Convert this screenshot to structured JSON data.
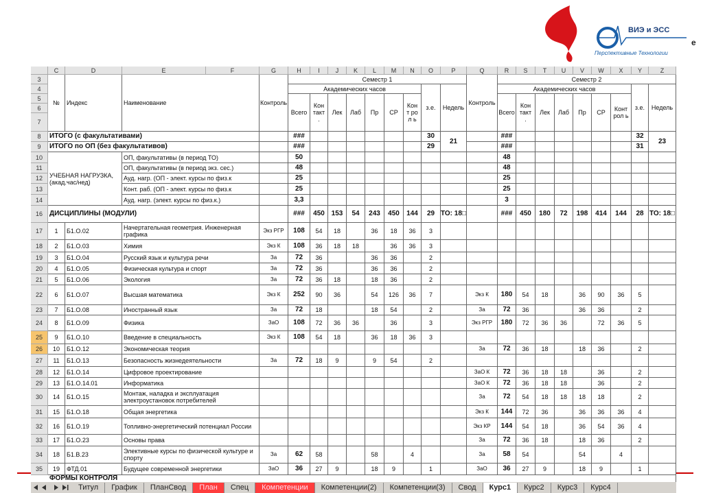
{
  "logo": {
    "brand": "ВИЭ и ЭСС",
    "tagline": "Перспективные Технологии",
    "cut": "е"
  },
  "column_letters": [
    "C",
    "D",
    "E",
    "F",
    "G",
    "H",
    "I",
    "J",
    "K",
    "L",
    "M",
    "N",
    "O",
    "P",
    "Q",
    "R",
    "S",
    "T",
    "U",
    "V",
    "W",
    "X",
    "Y",
    "Z"
  ],
  "header": {
    "row_numbers": [
      3,
      4,
      5,
      6,
      7
    ],
    "semesters": [
      "Семестр 1",
      "Семестр 2"
    ],
    "hours_label": [
      "Академических часов",
      "Академических часов"
    ],
    "columns": [
      "№",
      "Индекс",
      "Наименование",
      "Контроль",
      "Всего",
      "Кон такт .",
      "Лек",
      "Лаб",
      "Пр",
      "СР",
      "Конт рол ь",
      "з.е.",
      "Недель",
      "Контроль",
      "Всего",
      "Кон такт .",
      "Лек",
      "Лаб",
      "Пр",
      "СР",
      "Конт рол ь",
      "з.е.",
      "Недель"
    ]
  },
  "table": {
    "rows": [
      {
        "n": 8,
        "cells": [
          "ИТОГО (с факультативами)",
          null,
          null,
          null,
          "###",
          null,
          null,
          null,
          null,
          null,
          null,
          "30",
          "21",
          null,
          "###",
          null,
          null,
          null,
          null,
          null,
          null,
          "32",
          "23"
        ]
      },
      {
        "n": 9,
        "cells": [
          "ИТОГО по ОП (без факультативов)",
          null,
          null,
          null,
          "###",
          null,
          null,
          null,
          null,
          null,
          null,
          "29",
          null,
          null,
          "###",
          null,
          null,
          null,
          null,
          null,
          null,
          "31",
          null
        ]
      },
      {
        "n": 10,
        "cells": [
          "УЧЕБНАЯ НАГРУЗКА, (акад.час/нед)",
          null,
          "ОП, факультативы (в период ТО)",
          null,
          "50",
          null,
          null,
          null,
          null,
          null,
          null,
          null,
          null,
          null,
          "48",
          null,
          null,
          null,
          null,
          null,
          null,
          null,
          null
        ]
      },
      {
        "n": 11,
        "cells": [
          null,
          null,
          "ОП, факультативы (в период экз. сес.)",
          null,
          "48",
          null,
          null,
          null,
          null,
          null,
          null,
          null,
          null,
          null,
          "48",
          null,
          null,
          null,
          null,
          null,
          null,
          null,
          null
        ]
      },
      {
        "n": 12,
        "cells": [
          null,
          null,
          "Ауд. нагр. (ОП - элект. курсы по физ.к",
          null,
          "25",
          null,
          null,
          null,
          null,
          null,
          null,
          null,
          null,
          null,
          "25",
          null,
          null,
          null,
          null,
          null,
          null,
          null,
          null
        ]
      },
      {
        "n": 13,
        "cells": [
          null,
          null,
          "Конт. раб. (ОП - элект. курсы по физ.к",
          null,
          "25",
          null,
          null,
          null,
          null,
          null,
          null,
          null,
          null,
          null,
          "25",
          null,
          null,
          null,
          null,
          null,
          null,
          null,
          null
        ]
      },
      {
        "n": 14,
        "cells": [
          null,
          null,
          "Ауд. нагр. (элект. курсы по физ.к.)",
          null,
          "3,3",
          null,
          null,
          null,
          null,
          null,
          null,
          null,
          null,
          null,
          "3",
          null,
          null,
          null,
          null,
          null,
          null,
          null,
          null
        ]
      },
      {
        "n": 16,
        "cells": [
          "ДИСЦИПЛИНЫ (МОДУЛИ)",
          null,
          null,
          null,
          "###",
          "450",
          "153",
          "54",
          "243",
          "450",
          "144",
          "29",
          "ТО: 18□",
          null,
          "###",
          "450",
          "180",
          "72",
          "198",
          "414",
          "144",
          "28",
          "ТО: 18□"
        ]
      },
      {
        "n": 17,
        "cells": [
          "1",
          "Б1.О.02",
          "Начертательная геометрия. Инженерная графика",
          "Экз РГР",
          "108",
          "54",
          "18",
          null,
          "36",
          "18",
          "36",
          "3",
          null,
          null,
          null,
          null,
          null,
          null,
          null,
          null,
          null,
          null,
          null
        ]
      },
      {
        "n": 18,
        "cells": [
          "2",
          "Б1.О.03",
          "Химия",
          "Экз К",
          "108",
          "36",
          "18",
          "18",
          null,
          "36",
          "36",
          "3",
          null,
          null,
          null,
          null,
          null,
          null,
          null,
          null,
          null,
          null,
          null
        ]
      },
      {
        "n": 19,
        "cells": [
          "3",
          "Б1.О.04",
          "Русский язык и культура речи",
          "За",
          "72",
          "36",
          null,
          null,
          "36",
          "36",
          null,
          "2",
          null,
          null,
          null,
          null,
          null,
          null,
          null,
          null,
          null,
          null,
          null
        ]
      },
      {
        "n": 20,
        "cells": [
          "4",
          "Б1.О.05",
          "Физическая культура и спорт",
          "За",
          "72",
          "36",
          null,
          null,
          "36",
          "36",
          null,
          "2",
          null,
          null,
          null,
          null,
          null,
          null,
          null,
          null,
          null,
          null,
          null
        ]
      },
      {
        "n": 21,
        "cells": [
          "5",
          "Б1.О.06",
          "Экология",
          "За",
          "72",
          "36",
          "18",
          null,
          "18",
          "36",
          null,
          "2",
          null,
          null,
          null,
          null,
          null,
          null,
          null,
          null,
          null,
          null,
          null
        ]
      },
      {
        "n": 22,
        "cells": [
          "6",
          "Б1.О.07",
          "Высшая математика",
          "Экз К",
          "252",
          "90",
          "36",
          null,
          "54",
          "126",
          "36",
          "7",
          null,
          "Экз К",
          "180",
          "54",
          "18",
          null,
          "36",
          "90",
          "36",
          "5",
          null
        ]
      },
      {
        "n": 23,
        "cells": [
          "7",
          "Б1.О.08",
          "Иностранный язык",
          "За",
          "72",
          "18",
          null,
          null,
          "18",
          "54",
          null,
          "2",
          null,
          "За",
          "72",
          "36",
          null,
          null,
          "36",
          "36",
          null,
          "2",
          null
        ]
      },
      {
        "n": 24,
        "cells": [
          "8",
          "Б1.О.09",
          "Физика",
          "ЗаО",
          "108",
          "72",
          "36",
          "36",
          null,
          "36",
          null,
          "3",
          null,
          "Экз РГР",
          "180",
          "72",
          "36",
          "36",
          null,
          "72",
          "36",
          "5",
          null
        ]
      },
      {
        "n": 25,
        "cells": [
          "9",
          "Б1.О.10",
          "Введение в специальность",
          "Экз К",
          "108",
          "54",
          "18",
          null,
          "36",
          "18",
          "36",
          "3",
          null,
          null,
          null,
          null,
          null,
          null,
          null,
          null,
          null,
          null,
          null
        ]
      },
      {
        "n": 26,
        "cells": [
          "10",
          "Б1.О.12",
          "Экономическая теория",
          null,
          null,
          null,
          null,
          null,
          null,
          null,
          null,
          null,
          null,
          "За",
          "72",
          "36",
          "18",
          null,
          "18",
          "36",
          null,
          "2",
          null
        ]
      },
      {
        "n": 27,
        "cells": [
          "11",
          "Б1.О.13",
          "Безопасность жизнедеятельности",
          "За",
          "72",
          "18",
          "9",
          null,
          "9",
          "54",
          null,
          "2",
          null,
          null,
          null,
          null,
          null,
          null,
          null,
          null,
          null,
          null,
          null
        ]
      },
      {
        "n": 28,
        "cells": [
          "12",
          "Б1.О.14",
          "Цифровое проектирование",
          null,
          null,
          null,
          null,
          null,
          null,
          null,
          null,
          null,
          null,
          "ЗаО К",
          "72",
          "36",
          "18",
          "18",
          null,
          "36",
          null,
          "2",
          null
        ]
      },
      {
        "n": 29,
        "cells": [
          "13",
          "Б1.О.14.01",
          "Информатика",
          null,
          null,
          null,
          null,
          null,
          null,
          null,
          null,
          null,
          null,
          "ЗаО К",
          "72",
          "36",
          "18",
          "18",
          null,
          "36",
          null,
          "2",
          null
        ]
      },
      {
        "n": 30,
        "cells": [
          "14",
          "Б1.О.15",
          "Монтаж, наладка и эксплуатация электроустановок потребителей",
          null,
          null,
          null,
          null,
          null,
          null,
          null,
          null,
          null,
          null,
          "За",
          "72",
          "54",
          "18",
          "18",
          "18",
          "18",
          null,
          "2",
          null
        ]
      },
      {
        "n": 31,
        "cells": [
          "15",
          "Б1.О.18",
          "Общая энергетика",
          null,
          null,
          null,
          null,
          null,
          null,
          null,
          null,
          null,
          null,
          "Экз К",
          "144",
          "72",
          "36",
          null,
          "36",
          "36",
          "36",
          "4",
          null
        ]
      },
      {
        "n": 32,
        "cells": [
          "16",
          "Б1.О.19",
          "Топливно-энергетический потенциал России",
          null,
          null,
          null,
          null,
          null,
          null,
          null,
          null,
          null,
          null,
          "Экз КР",
          "144",
          "54",
          "18",
          null,
          "36",
          "54",
          "36",
          "4",
          null
        ]
      },
      {
        "n": 33,
        "cells": [
          "17",
          "Б1.О.23",
          "Основы права",
          null,
          null,
          null,
          null,
          null,
          null,
          null,
          null,
          null,
          null,
          "За",
          "72",
          "36",
          "18",
          null,
          "18",
          "36",
          null,
          "2",
          null
        ]
      },
      {
        "n": 34,
        "cells": [
          "18",
          "Б1.В.23",
          "Элективные курсы по физической культуре и спорту",
          "За",
          "62",
          "58",
          null,
          null,
          "58",
          null,
          "4",
          null,
          null,
          "За",
          "58",
          "54",
          null,
          null,
          "54",
          null,
          "4",
          null,
          null
        ]
      },
      {
        "n": 35,
        "cells": [
          "19",
          "ФТД.01",
          "Будущее современной энергетики",
          "ЗаО",
          "36",
          "27",
          "9",
          null,
          "18",
          "9",
          null,
          "1",
          null,
          "ЗаО",
          "36",
          "27",
          "9",
          null,
          "18",
          "9",
          null,
          "1",
          null
        ]
      }
    ],
    "footer_row": "ФОРМЫ КОНТРОЛЯ"
  },
  "tabs": [
    "Титул",
    "График",
    "ПланСвод",
    "План",
    "Спец",
    "Компетенции",
    "Компетенции(2)",
    "Компетенции(3)",
    "Свод",
    "Курс1",
    "Курс2",
    "Курс3",
    "Курс4"
  ]
}
